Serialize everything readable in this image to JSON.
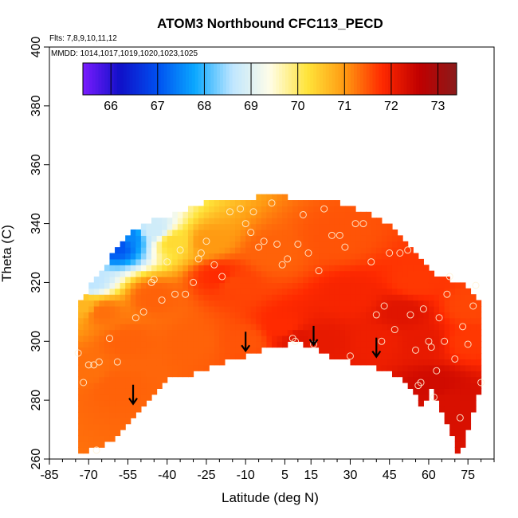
{
  "chart_data": {
    "type": "heatmap",
    "title": "ATOM3 Northbound CFC113_PECD",
    "notes": {
      "flights": "Flts: 7,8,9,10,11,12",
      "dates": "MMDD: 1014,1017,1019,1020,1023,1025"
    },
    "xlabel": "Latitude (deg N)",
    "ylabel": "Theta (C)",
    "xlim": [
      -85,
      85
    ],
    "ylim": [
      260,
      400
    ],
    "x_ticks": [
      -85,
      -70,
      -55,
      -40,
      -25,
      -10,
      5,
      15,
      30,
      45,
      60,
      75
    ],
    "y_ticks": [
      260,
      280,
      300,
      320,
      340,
      360,
      380,
      400
    ],
    "colorbar": {
      "min": 65.4,
      "max": 73.4,
      "ticks": [
        66,
        67,
        68,
        69,
        70,
        71,
        72,
        73
      ],
      "colors": [
        "#7a1cff",
        "#1010c8",
        "#0050f0",
        "#0aa8ff",
        "#bfe6ff",
        "#fffde8",
        "#ffe43a",
        "#ff9a12",
        "#ff2a00",
        "#c00000",
        "#8a1a1a"
      ]
    },
    "upper_boundary": [
      [
        -74,
        313
      ],
      [
        -70,
        318
      ],
      [
        -64,
        325
      ],
      [
        -58,
        333
      ],
      [
        -52,
        338
      ],
      [
        -45,
        341
      ],
      [
        -35,
        344
      ],
      [
        -25,
        347
      ],
      [
        -15,
        348
      ],
      [
        -5,
        349
      ],
      [
        5,
        349
      ],
      [
        15,
        348
      ],
      [
        25,
        347
      ],
      [
        35,
        344
      ],
      [
        45,
        340
      ],
      [
        52,
        334
      ],
      [
        58,
        327
      ],
      [
        64,
        322
      ],
      [
        70,
        320
      ],
      [
        76,
        318
      ],
      [
        80,
        313
      ]
    ],
    "lower_boundary": [
      [
        -74,
        262
      ],
      [
        -70,
        263
      ],
      [
        -62,
        266
      ],
      [
        -55,
        272
      ],
      [
        -48,
        280
      ],
      [
        -40,
        288
      ],
      [
        -30,
        289
      ],
      [
        -25,
        291
      ],
      [
        -18,
        293
      ],
      [
        -10,
        295
      ],
      [
        -4,
        297
      ],
      [
        5,
        299
      ],
      [
        10,
        300
      ],
      [
        15,
        298
      ],
      [
        25,
        294
      ],
      [
        35,
        292
      ],
      [
        45,
        290
      ],
      [
        52,
        286
      ],
      [
        56,
        281
      ],
      [
        58,
        274
      ],
      [
        60,
        286
      ],
      [
        63,
        281
      ],
      [
        68,
        271
      ],
      [
        72,
        260
      ],
      [
        76,
        273
      ],
      [
        79,
        283
      ],
      [
        80,
        290
      ]
    ],
    "value_field": [
      {
        "lat": -72,
        "theta": 312,
        "value": 70.7
      },
      {
        "lat": -70,
        "theta": 320,
        "value": 68.6
      },
      {
        "lat": -60,
        "theta": 333,
        "value": 67.0
      },
      {
        "lat": -55,
        "theta": 336,
        "value": 67.5
      },
      {
        "lat": -45,
        "theta": 338,
        "value": 68.8
      },
      {
        "lat": -37,
        "theta": 334,
        "value": 70.3
      },
      {
        "lat": -25,
        "theta": 334,
        "value": 71.0
      },
      {
        "lat": -65,
        "theta": 310,
        "value": 71.3
      },
      {
        "lat": -70,
        "theta": 290,
        "value": 71.3
      },
      {
        "lat": -60,
        "theta": 285,
        "value": 71.4
      },
      {
        "lat": -55,
        "theta": 300,
        "value": 71.4
      },
      {
        "lat": -45,
        "theta": 315,
        "value": 71.4
      },
      {
        "lat": -30,
        "theta": 300,
        "value": 71.4
      },
      {
        "lat": -15,
        "theta": 320,
        "value": 71.6
      },
      {
        "lat": -10,
        "theta": 300,
        "value": 71.5
      },
      {
        "lat": 0,
        "theta": 330,
        "value": 71.4
      },
      {
        "lat": 5,
        "theta": 305,
        "value": 71.8
      },
      {
        "lat": 10,
        "theta": 301,
        "value": 72.2
      },
      {
        "lat": 20,
        "theta": 300,
        "value": 72.1
      },
      {
        "lat": 30,
        "theta": 315,
        "value": 71.9
      },
      {
        "lat": 25,
        "theta": 335,
        "value": 71.5
      },
      {
        "lat": 40,
        "theta": 300,
        "value": 72.0
      },
      {
        "lat": 50,
        "theta": 310,
        "value": 72.2
      },
      {
        "lat": 58,
        "theta": 300,
        "value": 72.1
      },
      {
        "lat": 62,
        "theta": 285,
        "value": 72.4
      },
      {
        "lat": 68,
        "theta": 280,
        "value": 72.3
      },
      {
        "lat": 75,
        "theta": 300,
        "value": 71.7
      },
      {
        "lat": 76,
        "theta": 312,
        "value": 71.6
      },
      {
        "lat": 55,
        "theta": 320,
        "value": 71.7
      },
      {
        "lat": -20,
        "theta": 322,
        "value": 71.8
      }
    ],
    "observations": [
      {
        "lat": -74,
        "theta": 296
      },
      {
        "lat": -72,
        "theta": 286
      },
      {
        "lat": -70,
        "theta": 292
      },
      {
        "lat": -68,
        "theta": 292
      },
      {
        "lat": -66,
        "theta": 293
      },
      {
        "lat": -67,
        "theta": 263
      },
      {
        "lat": -62,
        "theta": 301
      },
      {
        "lat": -59,
        "theta": 293
      },
      {
        "lat": -52,
        "theta": 308
      },
      {
        "lat": -49,
        "theta": 310
      },
      {
        "lat": -46,
        "theta": 320
      },
      {
        "lat": -45,
        "theta": 321
      },
      {
        "lat": -42,
        "theta": 314
      },
      {
        "lat": -40,
        "theta": 327
      },
      {
        "lat": -37,
        "theta": 316
      },
      {
        "lat": -35,
        "theta": 331
      },
      {
        "lat": -33,
        "theta": 316
      },
      {
        "lat": -30,
        "theta": 320
      },
      {
        "lat": -28,
        "theta": 328
      },
      {
        "lat": -27,
        "theta": 330
      },
      {
        "lat": -25,
        "theta": 334
      },
      {
        "lat": -22,
        "theta": 326
      },
      {
        "lat": -19,
        "theta": 322
      },
      {
        "lat": -16,
        "theta": 344
      },
      {
        "lat": -12,
        "theta": 345
      },
      {
        "lat": -10,
        "theta": 340
      },
      {
        "lat": -8,
        "theta": 337
      },
      {
        "lat": -7,
        "theta": 344
      },
      {
        "lat": -5,
        "theta": 332
      },
      {
        "lat": -3,
        "theta": 334
      },
      {
        "lat": 0,
        "theta": 347
      },
      {
        "lat": 2,
        "theta": 333
      },
      {
        "lat": 4,
        "theta": 326
      },
      {
        "lat": 6,
        "theta": 328
      },
      {
        "lat": 8,
        "theta": 301
      },
      {
        "lat": 9,
        "theta": 300
      },
      {
        "lat": 10,
        "theta": 333
      },
      {
        "lat": 12,
        "theta": 343
      },
      {
        "lat": 14,
        "theta": 330
      },
      {
        "lat": 16,
        "theta": 299
      },
      {
        "lat": 18,
        "theta": 324
      },
      {
        "lat": 20,
        "theta": 345
      },
      {
        "lat": 23,
        "theta": 336
      },
      {
        "lat": 26,
        "theta": 336
      },
      {
        "lat": 28,
        "theta": 332
      },
      {
        "lat": 30,
        "theta": 295
      },
      {
        "lat": 32,
        "theta": 340
      },
      {
        "lat": 35,
        "theta": 340
      },
      {
        "lat": 38,
        "theta": 327
      },
      {
        "lat": 40,
        "theta": 309
      },
      {
        "lat": 42,
        "theta": 300
      },
      {
        "lat": 43,
        "theta": 312
      },
      {
        "lat": 45,
        "theta": 330
      },
      {
        "lat": 47,
        "theta": 304
      },
      {
        "lat": 49,
        "theta": 330
      },
      {
        "lat": 52,
        "theta": 331
      },
      {
        "lat": 53,
        "theta": 309
      },
      {
        "lat": 55,
        "theta": 297
      },
      {
        "lat": 56,
        "theta": 285
      },
      {
        "lat": 57,
        "theta": 286
      },
      {
        "lat": 58,
        "theta": 311
      },
      {
        "lat": 60,
        "theta": 300
      },
      {
        "lat": 61,
        "theta": 298
      },
      {
        "lat": 62,
        "theta": 281
      },
      {
        "lat": 63,
        "theta": 290
      },
      {
        "lat": 64,
        "theta": 308
      },
      {
        "lat": 66,
        "theta": 300
      },
      {
        "lat": 67,
        "theta": 316
      },
      {
        "lat": 68,
        "theta": 322
      },
      {
        "lat": 70,
        "theta": 294
      },
      {
        "lat": 72,
        "theta": 274
      },
      {
        "lat": 73,
        "theta": 305
      },
      {
        "lat": 75,
        "theta": 299
      },
      {
        "lat": 77,
        "theta": 312
      },
      {
        "lat": 78,
        "theta": 319
      },
      {
        "lat": 80,
        "theta": 286
      }
    ],
    "arrows": [
      {
        "lat": -53,
        "theta": 282
      },
      {
        "lat": -10,
        "theta": 300
      },
      {
        "lat": 16,
        "theta": 302
      },
      {
        "lat": 40,
        "theta": 298
      }
    ]
  }
}
